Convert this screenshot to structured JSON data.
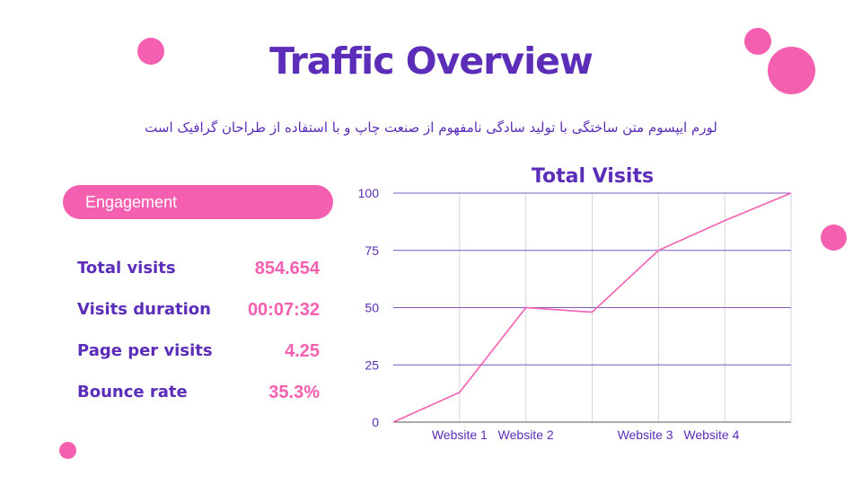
{
  "slide": {
    "title": "Traffic Overview",
    "subtitle": "لورم ایپسوم متن ساختگی با تولید سادگی نامفهوم از صنعت چاپ و با استفاده از طراحان گرافیک است",
    "engagement_label": "Engagement",
    "metrics": [
      {
        "label": "Total visits",
        "value": "854.654"
      },
      {
        "label": "Visits duration",
        "value": "00:07:32"
      },
      {
        "label": "Page per visits",
        "value": "4.25"
      },
      {
        "label": "Bounce rate",
        "value": "35.3%"
      }
    ]
  },
  "colors": {
    "accent": "#f55fb0",
    "primary": "#5b2db8",
    "grid": "#7e57c2"
  },
  "chart_data": {
    "type": "line",
    "title": "Total Visits",
    "categories": [
      "Website 1",
      "Website 2",
      "Website 3",
      "Website 4"
    ],
    "x": [
      0,
      1,
      2,
      3,
      4,
      5,
      6
    ],
    "series": [
      {
        "values": [
          0,
          13,
          50,
          48,
          75,
          88,
          100
        ]
      }
    ],
    "yticks": [
      "0",
      "25",
      "50",
      "75",
      "100"
    ],
    "ylim": [
      0,
      100
    ],
    "grid": true
  }
}
